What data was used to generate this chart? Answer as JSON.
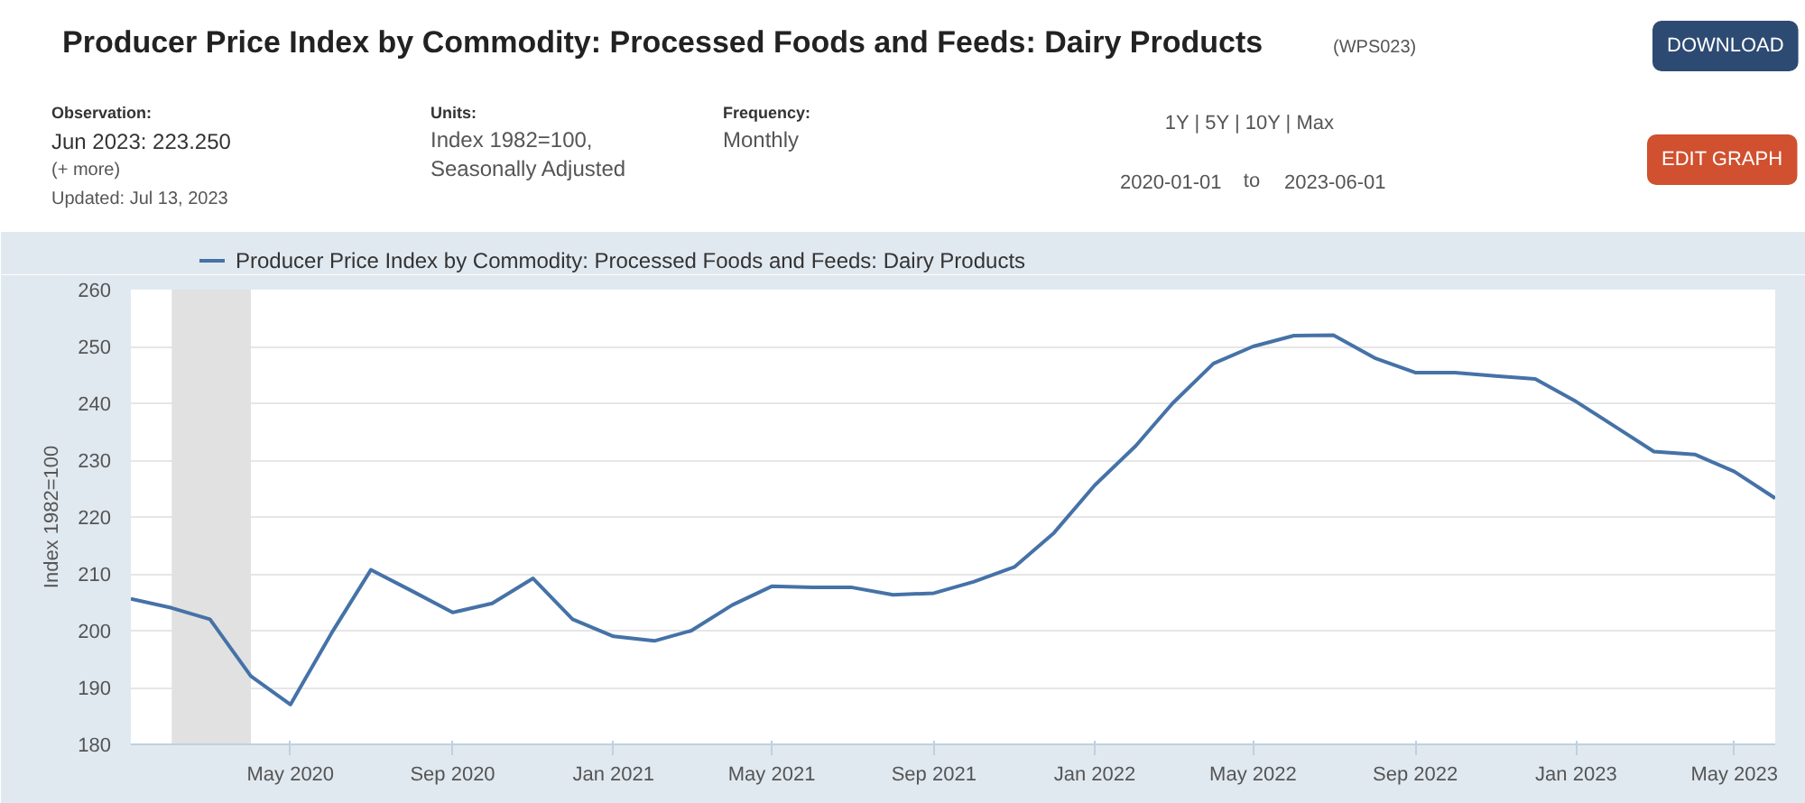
{
  "chart_data": {
    "type": "line",
    "title": "Producer Price Index by Commodity: Processed Foods and Feeds: Dairy Products",
    "ylabel": "Index 1982=100",
    "annotations": [
      "(WPS023)",
      "Observation:",
      "Jun 2023: 223.250",
      "(+ more)",
      "Updated: Jul 13, 2023",
      "Units:",
      "Index 1982=100,",
      "Seasonally Adjusted",
      "Frequency:",
      "Monthly",
      "1Y | 5Y | 10Y | Max",
      "2020-01-01",
      "to",
      "2023-06-01",
      "DOWNLOAD",
      "EDIT GRAPH"
    ],
    "x": [
      "2020-01",
      "2020-02",
      "2020-03",
      "2020-04",
      "2020-05",
      "2020-06",
      "2020-07",
      "2020-08",
      "2020-09",
      "2020-10",
      "2020-11",
      "2020-12",
      "2021-01",
      "2021-02",
      "2021-03",
      "2021-04",
      "2021-05",
      "2021-06",
      "2021-07",
      "2021-08",
      "2021-09",
      "2021-10",
      "2021-11",
      "2021-12",
      "2022-01",
      "2022-02",
      "2022-03",
      "2022-04",
      "2022-05",
      "2022-06",
      "2022-07",
      "2022-08",
      "2022-09",
      "2022-10",
      "2022-11",
      "2022-12",
      "2023-01",
      "2023-02",
      "2023-03",
      "2023-04",
      "2023-05",
      "2023-06"
    ],
    "series": [
      {
        "name": "Producer Price Index by Commodity: Processed Foods and Feeds: Dairy Products",
        "color": "#4572a7",
        "values": [
          205.6,
          204,
          202,
          192,
          187,
          199.5,
          210.7,
          207,
          203.2,
          204.8,
          209.2,
          202,
          199,
          198.2,
          200,
          204.5,
          207.8,
          207.6,
          207.6,
          206.3,
          206.6,
          208.6,
          211.2,
          217.2,
          225.6,
          232.5,
          240,
          247,
          250,
          251.9,
          252,
          248,
          245.4,
          245.4,
          244.8,
          244.3,
          240.3,
          235.7,
          231.5,
          231,
          228,
          223.3
        ]
      }
    ],
    "xlim": [
      "2020-01-01",
      "2023-06-01"
    ],
    "xticks": [
      {
        "value": "2020-05-01",
        "label": "May 2020"
      },
      {
        "value": "2020-09-01",
        "label": "Sep 2020"
      },
      {
        "value": "2021-01-01",
        "label": "Jan 2021"
      },
      {
        "value": "2021-05-01",
        "label": "May 2021"
      },
      {
        "value": "2021-09-01",
        "label": "Sep 2021"
      },
      {
        "value": "2022-01-01",
        "label": "Jan 2022"
      },
      {
        "value": "2022-05-01",
        "label": "May 2022"
      },
      {
        "value": "2022-09-01",
        "label": "Sep 2022"
      },
      {
        "value": "2023-01-01",
        "label": "Jan 2023"
      },
      {
        "value": "2023-05-01",
        "label": "May 2023"
      }
    ],
    "ylim": [
      180,
      260
    ],
    "yticks": [
      180,
      190,
      200,
      210,
      220,
      230,
      240,
      250,
      260
    ],
    "bands": [
      {
        "axis": "x",
        "from": "2020-02-01",
        "to": "2020-04-01",
        "color": "#e1e1e1"
      }
    ],
    "grid": "y",
    "legend": "top left",
    "marker": "none",
    "line_style": "solid"
  }
}
